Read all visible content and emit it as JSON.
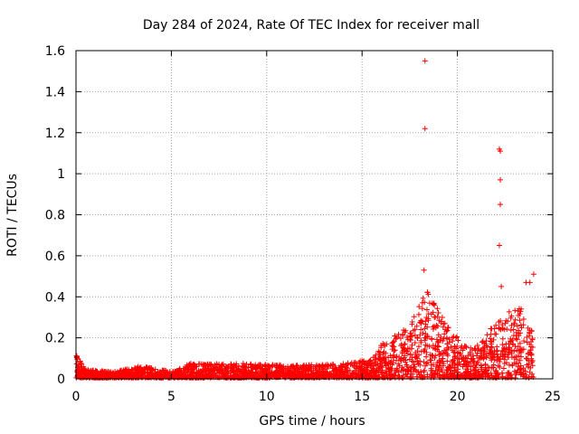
{
  "chart_data": {
    "type": "scatter",
    "title": "Day 284 of 2024, Rate Of TEC Index for receiver mall",
    "xlabel": "GPS time / hours",
    "ylabel": "ROTI / TECUs",
    "xlim": [
      0,
      25
    ],
    "ylim": [
      0,
      1.6
    ],
    "grid": true,
    "marker": "+",
    "series_color": "#ff0000",
    "x_ticks": [
      {
        "value": 0,
        "label": "0"
      },
      {
        "value": 5,
        "label": "5"
      },
      {
        "value": 10,
        "label": "10"
      },
      {
        "value": 15,
        "label": "15"
      },
      {
        "value": 20,
        "label": "20"
      },
      {
        "value": 25,
        "label": "25"
      }
    ],
    "y_ticks": [
      {
        "value": 0,
        "label": "0"
      },
      {
        "value": 0.2,
        "label": "0.2"
      },
      {
        "value": 0.4,
        "label": "0.4"
      },
      {
        "value": 0.6,
        "label": "0.6"
      },
      {
        "value": 0.8,
        "label": "0.8"
      },
      {
        "value": 1.0,
        "label": "1"
      },
      {
        "value": 1.2,
        "label": "1.2"
      },
      {
        "value": 1.4,
        "label": "1.4"
      },
      {
        "value": 1.6,
        "label": "1.6"
      }
    ],
    "notable_points": [
      {
        "x": 18.3,
        "y": 1.55
      },
      {
        "x": 18.3,
        "y": 1.22
      },
      {
        "x": 22.2,
        "y": 1.12
      },
      {
        "x": 22.25,
        "y": 1.11
      },
      {
        "x": 22.25,
        "y": 0.97
      },
      {
        "x": 22.25,
        "y": 0.85
      },
      {
        "x": 22.2,
        "y": 0.65
      },
      {
        "x": 24.0,
        "y": 0.51
      },
      {
        "x": 23.8,
        "y": 0.47
      },
      {
        "x": 22.3,
        "y": 0.45
      },
      {
        "x": 23.6,
        "y": 0.47
      },
      {
        "x": 18.25,
        "y": 0.53
      }
    ],
    "baseline_profile": [
      {
        "x": 0.0,
        "y": 0.12
      },
      {
        "x": 0.5,
        "y": 0.04
      },
      {
        "x": 2.0,
        "y": 0.03
      },
      {
        "x": 3.4,
        "y": 0.06
      },
      {
        "x": 5.0,
        "y": 0.03
      },
      {
        "x": 6.0,
        "y": 0.07
      },
      {
        "x": 8.8,
        "y": 0.07
      },
      {
        "x": 11.5,
        "y": 0.06
      },
      {
        "x": 13.8,
        "y": 0.07
      },
      {
        "x": 15.5,
        "y": 0.09
      },
      {
        "x": 16.0,
        "y": 0.17
      },
      {
        "x": 17.5,
        "y": 0.25
      },
      {
        "x": 18.3,
        "y": 0.45
      },
      {
        "x": 19.5,
        "y": 0.25
      },
      {
        "x": 20.5,
        "y": 0.15
      },
      {
        "x": 21.2,
        "y": 0.16
      },
      {
        "x": 22.0,
        "y": 0.28
      },
      {
        "x": 23.2,
        "y": 0.37
      },
      {
        "x": 24.0,
        "y": 0.22
      }
    ]
  }
}
